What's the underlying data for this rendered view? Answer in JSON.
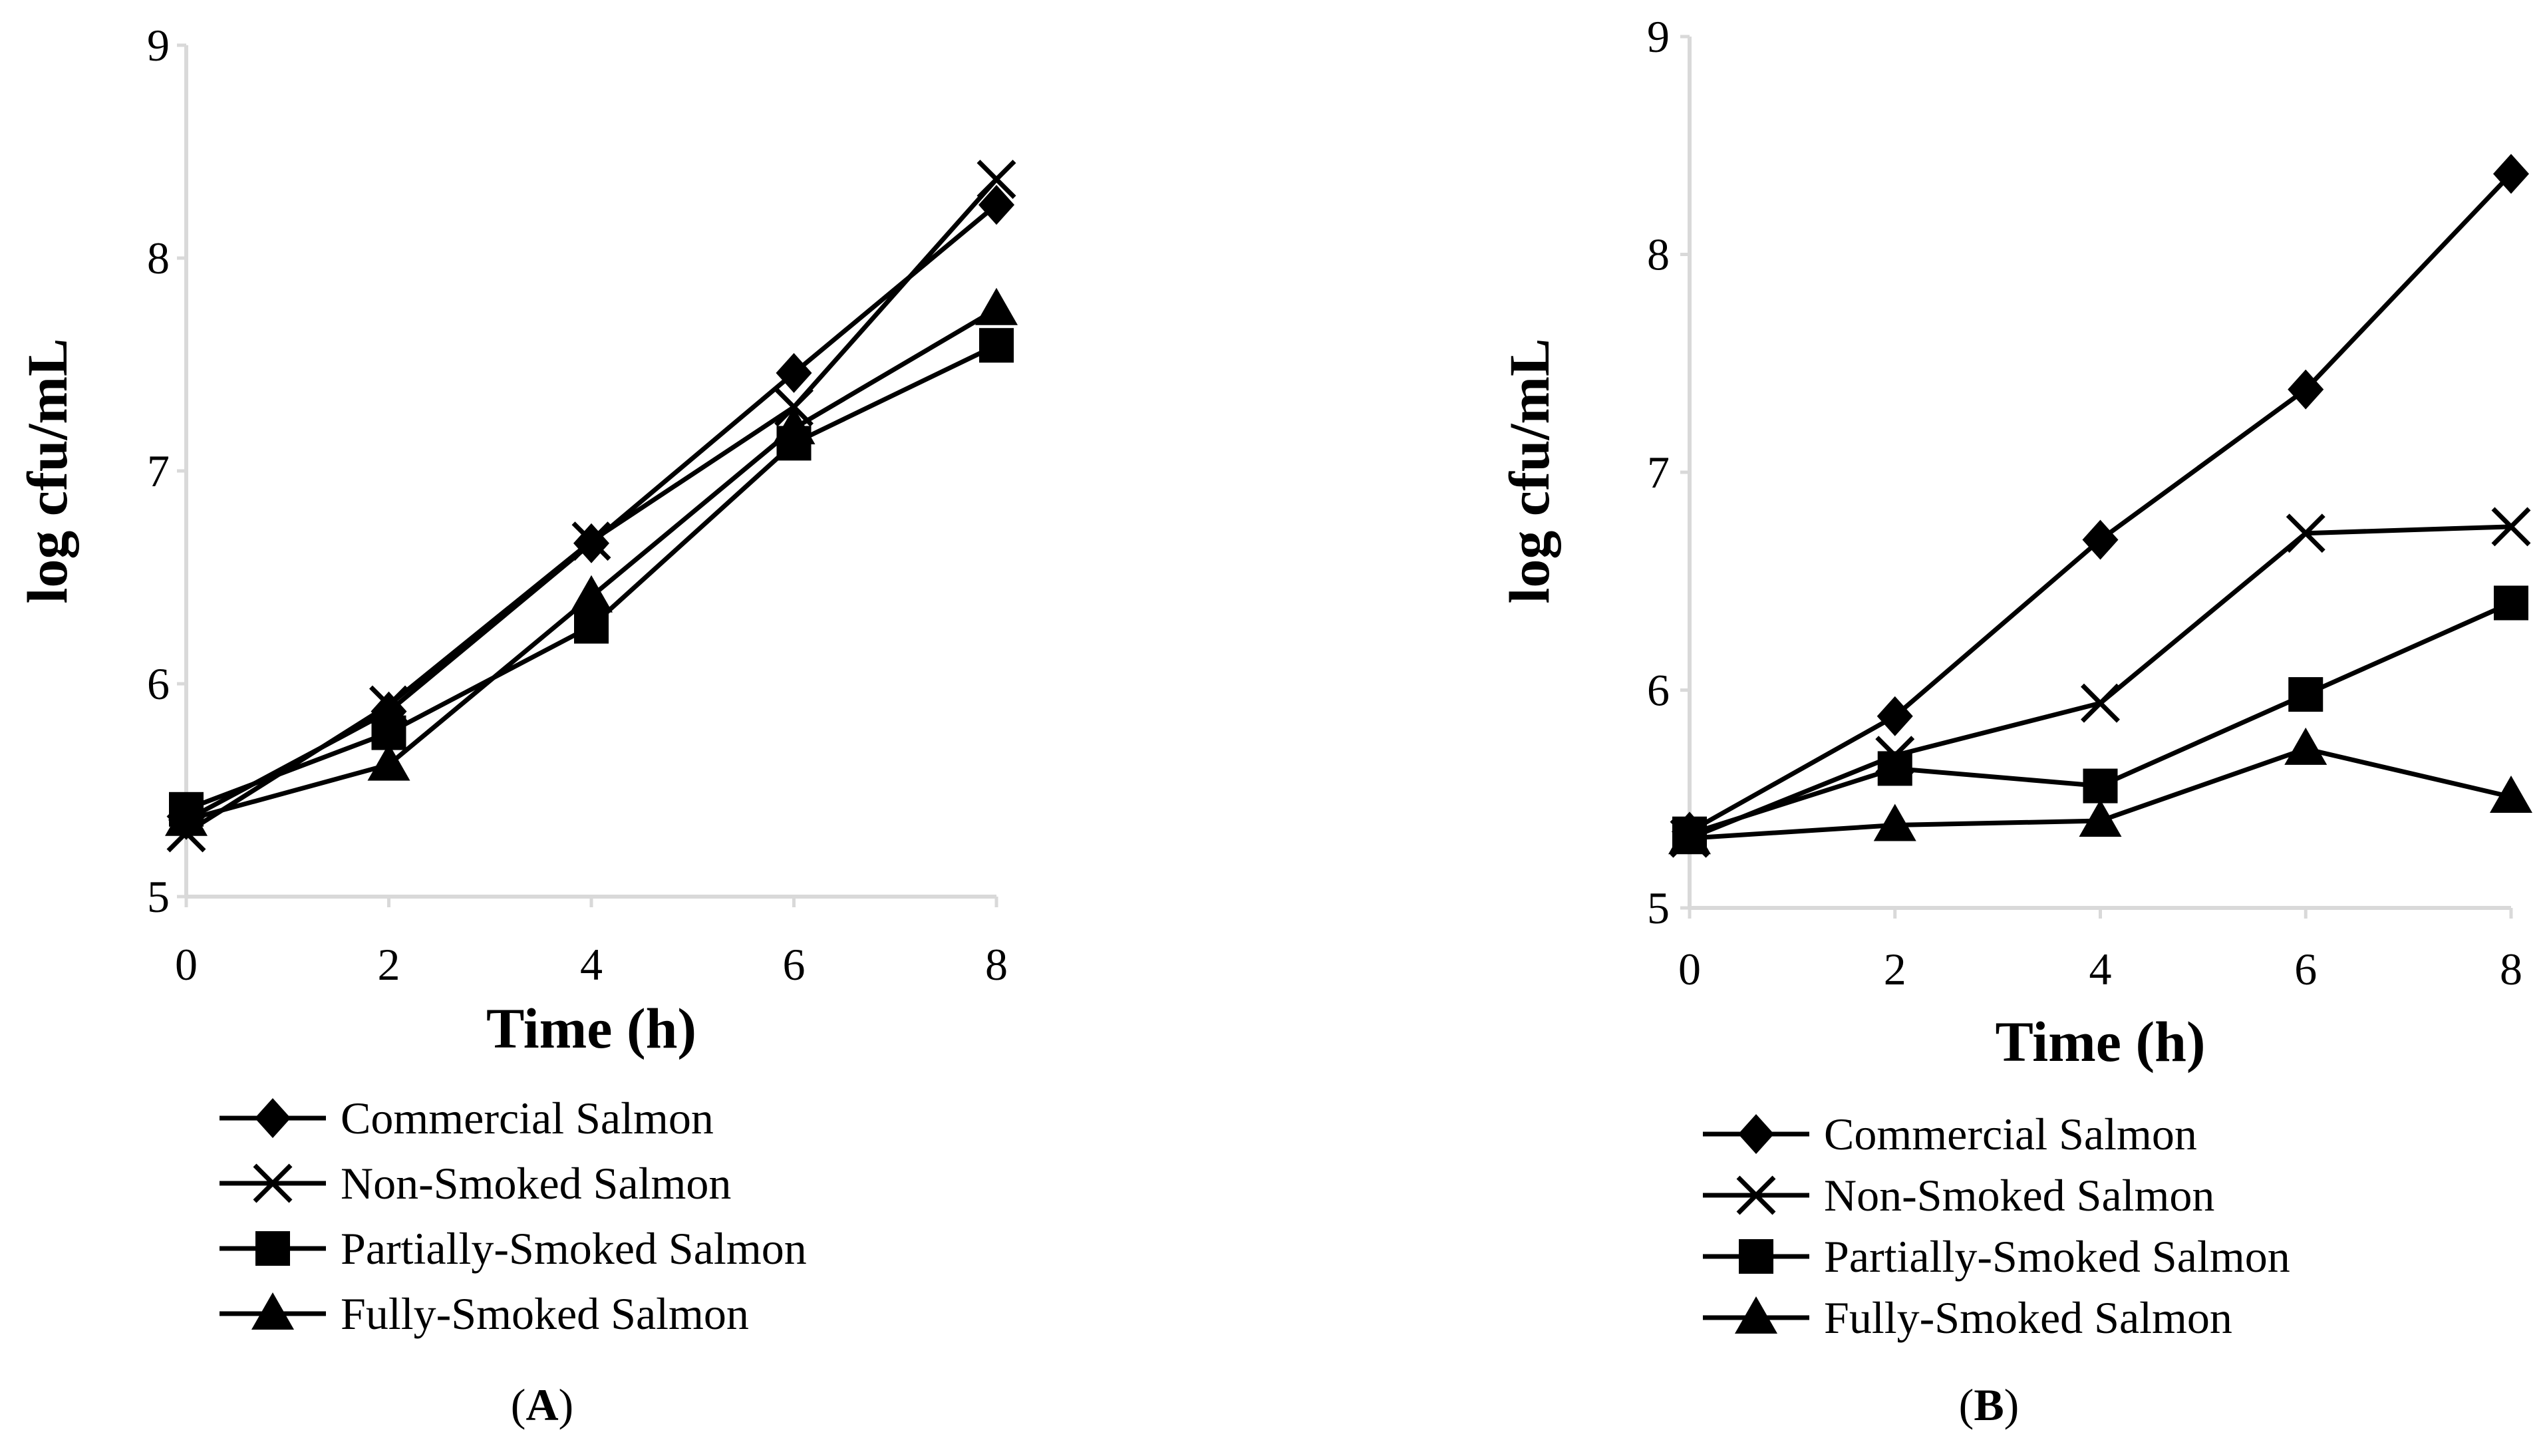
{
  "chart_data": [
    {
      "type": "line",
      "panel_label": "A",
      "title": "",
      "xlabel": "Time (h)",
      "ylabel": "log cfu/mL",
      "xlim": [
        0,
        8
      ],
      "ylim": [
        5,
        9
      ],
      "xticks": [
        0,
        2,
        4,
        6,
        8
      ],
      "yticks": [
        5,
        6,
        7,
        8,
        9
      ],
      "grid": false,
      "legend_position": "bottom",
      "x": [
        0,
        2,
        4,
        6,
        8
      ],
      "series": [
        {
          "name": "Commercial Salmon",
          "marker": "diamond",
          "values": [
            5.36,
            5.87,
            6.66,
            7.46,
            8.25
          ]
        },
        {
          "name": "Non-Smoked Salmon",
          "marker": "x",
          "values": [
            5.3,
            5.9,
            6.67,
            7.3,
            8.37
          ]
        },
        {
          "name": "Partially-Smoked Salmon",
          "marker": "square",
          "values": [
            5.41,
            5.77,
            6.27,
            7.13,
            7.59
          ]
        },
        {
          "name": "Fully-Smoked Salmon",
          "marker": "triangle",
          "values": [
            5.36,
            5.62,
            6.41,
            7.2,
            7.76
          ]
        }
      ]
    },
    {
      "type": "line",
      "panel_label": "B",
      "title": "",
      "xlabel": "Time (h)",
      "ylabel": "log cfu/mL",
      "xlim": [
        0,
        8
      ],
      "ylim": [
        5,
        9
      ],
      "xticks": [
        0,
        2,
        4,
        6,
        8
      ],
      "yticks": [
        5,
        6,
        7,
        8,
        9
      ],
      "grid": false,
      "legend_position": "bottom",
      "x": [
        0,
        2,
        4,
        6,
        8
      ],
      "series": [
        {
          "name": "Commercial Salmon",
          "marker": "diamond",
          "values": [
            5.35,
            5.88,
            6.69,
            7.38,
            8.37
          ]
        },
        {
          "name": "Non-Smoked Salmon",
          "marker": "x",
          "values": [
            5.32,
            5.7,
            5.94,
            6.72,
            6.75
          ]
        },
        {
          "name": "Partially-Smoked Salmon",
          "marker": "square",
          "values": [
            5.34,
            5.64,
            5.56,
            5.98,
            6.4
          ]
        },
        {
          "name": "Fully-Smoked Salmon",
          "marker": "triangle",
          "values": [
            5.32,
            5.38,
            5.4,
            5.73,
            5.51
          ]
        }
      ]
    }
  ],
  "colors": {
    "axis": "#d9d9d9",
    "series": "#000000",
    "background": "#ffffff"
  }
}
